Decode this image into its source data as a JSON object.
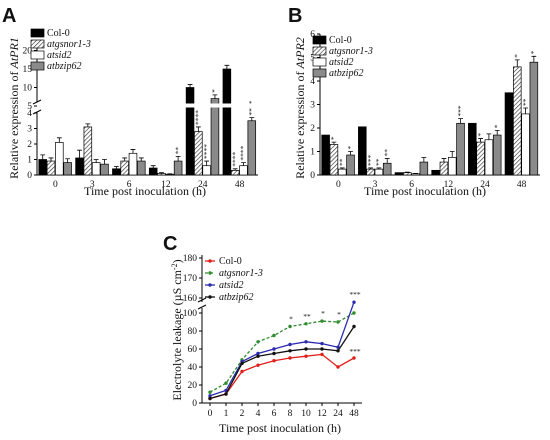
{
  "chart_data": [
    {
      "panel": "A",
      "type": "bar",
      "ylabel": "Relative expression of ",
      "ylabel_gene": "AtPR1",
      "xlabel": "Time post inoculation (h)",
      "categories": [
        "0",
        "3",
        "6",
        "12",
        "24",
        "48"
      ],
      "lower_yticks": [
        "0",
        "1",
        "2",
        "3",
        "4"
      ],
      "upper_yticks": [
        "5",
        "10",
        "15",
        "20"
      ],
      "axis_break": true,
      "series": [
        {
          "name": "Col-0",
          "values": [
            1.0,
            1.1,
            0.4,
            0.45,
            10.0,
            15.0
          ],
          "errors": [
            0.3,
            0.5,
            0.15,
            0.15,
            0.8,
            1.0
          ],
          "marks": [
            "",
            "",
            "",
            "",
            "",
            ""
          ]
        },
        {
          "name": "atgsnor1-3",
          "values": [
            0.9,
            3.1,
            0.9,
            0.1,
            2.8,
            0.3
          ],
          "errors": [
            0.2,
            0.2,
            0.2,
            0.05,
            0.3,
            0.1
          ],
          "marks": [
            "",
            "",
            "",
            "",
            "****",
            "****"
          ]
        },
        {
          "name": "atsid2",
          "values": [
            2.1,
            0.8,
            1.4,
            0.05,
            0.6,
            0.6
          ],
          "errors": [
            0.3,
            0.2,
            0.25,
            0.03,
            0.3,
            0.2
          ],
          "marks": [
            "",
            "",
            "",
            "",
            "****",
            "****"
          ]
        },
        {
          "name": "atbzip62",
          "values": [
            0.8,
            0.7,
            0.9,
            0.9,
            7.0,
            3.5
          ],
          "errors": [
            0.25,
            0.3,
            0.2,
            0.3,
            1.0,
            0.2
          ],
          "marks": [
            "",
            "",
            "",
            "**",
            "*",
            "****"
          ]
        }
      ]
    },
    {
      "panel": "B",
      "type": "bar",
      "ylabel": "Relative expression of ",
      "ylabel_gene": "AtPR2",
      "xlabel": "Time post inoculation (h)",
      "categories": [
        "0",
        "3",
        "6",
        "12",
        "24",
        "48"
      ],
      "yticks": [
        "0",
        "1",
        "2",
        "3",
        "4",
        "5",
        "6"
      ],
      "ylim": [
        0,
        6
      ],
      "series": [
        {
          "name": "Col-0",
          "values": [
            1.7,
            2.05,
            0.1,
            0.2,
            2.2,
            3.5
          ],
          "errors": [
            0,
            0,
            0,
            0,
            0,
            0
          ],
          "marks": [
            "",
            "",
            "",
            "",
            "",
            ""
          ]
        },
        {
          "name": "atgsnor1-3",
          "values": [
            1.3,
            0.25,
            0.1,
            0.55,
            1.4,
            4.6
          ],
          "errors": [
            0.1,
            0.05,
            0.02,
            0.15,
            0.15,
            0.3
          ],
          "marks": [
            "*",
            "***",
            "",
            "",
            "*",
            "*"
          ]
        },
        {
          "name": "atsid2",
          "values": [
            0.25,
            0.25,
            0.05,
            0.75,
            1.5,
            2.6
          ],
          "errors": [
            0.05,
            0.05,
            0.02,
            0.25,
            0.25,
            0.25
          ],
          "marks": [
            "**",
            "**",
            "",
            "",
            "",
            "**"
          ]
        },
        {
          "name": "atbzip62",
          "values": [
            0.85,
            0.5,
            0.55,
            2.2,
            1.7,
            4.8
          ],
          "errors": [
            0.15,
            0.2,
            0.2,
            0.2,
            0.2,
            0.25
          ],
          "marks": [
            "*",
            "**",
            "",
            "***",
            "*",
            "*"
          ]
        }
      ]
    },
    {
      "panel": "C",
      "type": "line",
      "ylabel": "Electrolyte leakage (µS cm",
      "ylabel_sup": "-2",
      "ylabel_end": ")",
      "xlabel": "Time post inoculation (h)",
      "x": [
        "0",
        "1",
        "2",
        "4",
        "6",
        "8",
        "10",
        "12",
        "24",
        "48"
      ],
      "lower_yticks": [
        "0",
        "20",
        "40",
        "60",
        "80",
        "100"
      ],
      "upper_yticks": [
        "160",
        "170",
        "180"
      ],
      "axis_break": true,
      "series": [
        {
          "name": "Col-0",
          "color": "#e0201b",
          "dash": false,
          "values": [
            5,
            10,
            35,
            42,
            47,
            50,
            52,
            54,
            40,
            50
          ],
          "marks": [
            "",
            "",
            "",
            "",
            "",
            "",
            "",
            "",
            "",
            "***"
          ]
        },
        {
          "name": "atgsnor1-3",
          "color": "#2e8b2e",
          "dash": true,
          "values": [
            12,
            22,
            48,
            68,
            75,
            85,
            88,
            91,
            90,
            100
          ],
          "marks": [
            "",
            "",
            "",
            "",
            "",
            "*",
            "**",
            "*",
            "*",
            ""
          ]
        },
        {
          "name": "atsid2",
          "color": "#2b2bb0",
          "dash": false,
          "values": [
            8,
            14,
            46,
            55,
            60,
            65,
            68,
            66,
            62,
            112
          ],
          "marks": [
            "",
            "",
            "",
            "",
            "",
            "",
            "",
            "",
            "",
            "***"
          ]
        },
        {
          "name": "atbzip62",
          "color": "#111111",
          "dash": false,
          "values": [
            5,
            10,
            44,
            52,
            55,
            58,
            60,
            60,
            58,
            85
          ],
          "marks": [
            "",
            "",
            "",
            "",
            "",
            "",
            "",
            "",
            "",
            ""
          ]
        }
      ]
    }
  ]
}
